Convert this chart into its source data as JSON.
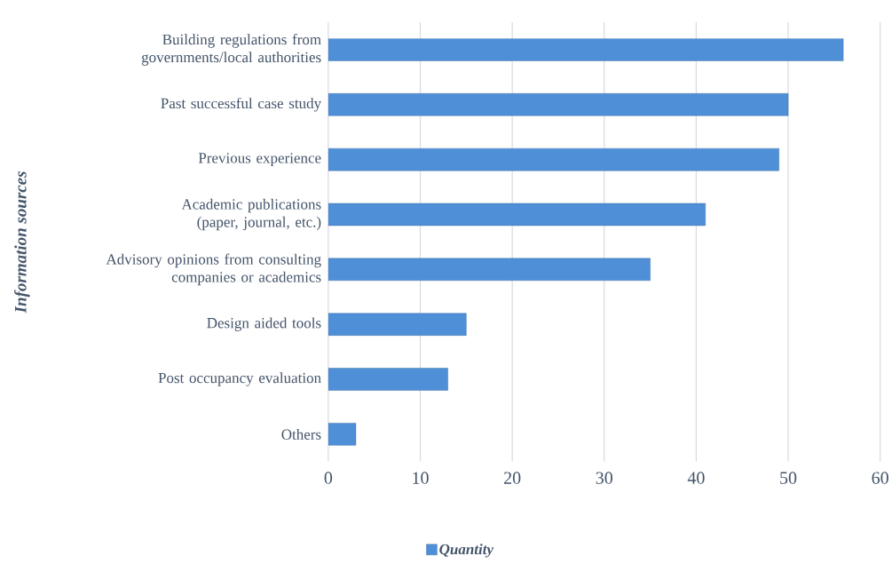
{
  "chart_data": {
    "type": "bar",
    "orientation": "horizontal",
    "ylabel": "Information sources",
    "categories": [
      "Building regulations from governments/local authorities",
      "Past successful case study",
      "Previous experience",
      "Academic publications (paper, journal, etc.)",
      "Advisory opinions from consulting companies or academics",
      "Design aided tools",
      "Post occupancy evaluation",
      "Others"
    ],
    "series": [
      {
        "name": "Quantity",
        "color": "#4f8fd8",
        "values": [
          56,
          50,
          49,
          41,
          35,
          15,
          13,
          3
        ]
      }
    ],
    "xlim": [
      0,
      60
    ],
    "xticks": [
      0,
      10,
      20,
      30,
      40,
      50,
      60
    ],
    "grid": "x",
    "legend": "bottom"
  }
}
